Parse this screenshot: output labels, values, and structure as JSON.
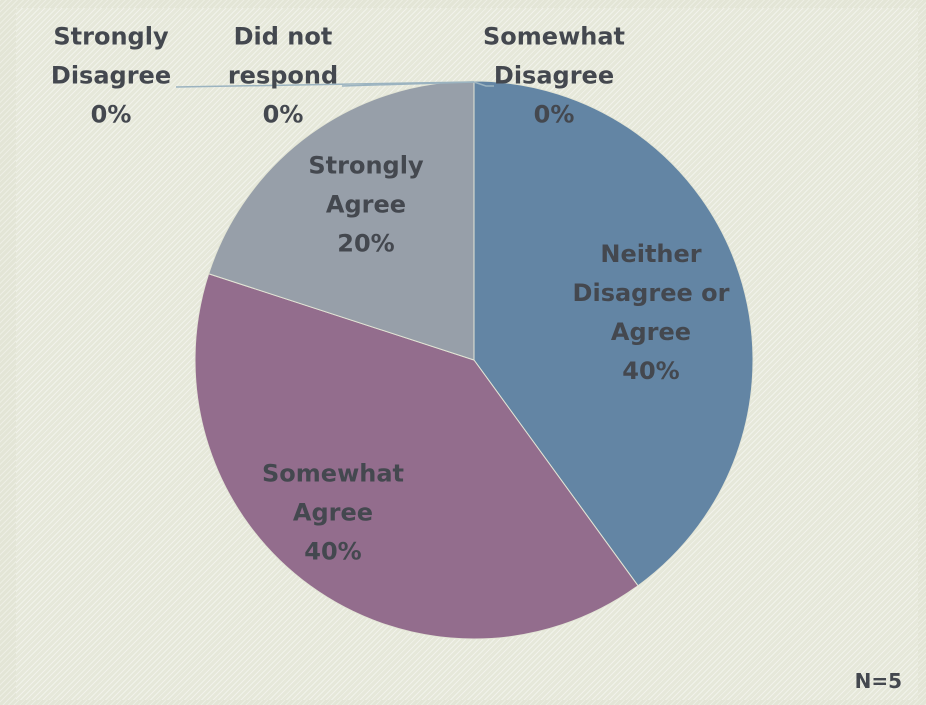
{
  "chart_data": {
    "type": "pie",
    "slices": [
      {
        "label": [
          "Neither",
          "Disagree or",
          "Agree"
        ],
        "percent_label": "40%",
        "value": 40,
        "color": "#6385a4"
      },
      {
        "label": [
          "Somewhat",
          "Agree"
        ],
        "percent_label": "40%",
        "value": 40,
        "color": "#936d8d"
      },
      {
        "label": [
          "Strongly",
          "Agree"
        ],
        "percent_label": "20%",
        "value": 20,
        "color": "#979fa9"
      },
      {
        "label": [
          "Strongly",
          "Disagree"
        ],
        "percent_label": "0%",
        "value": 0,
        "color": "#8aa3b3"
      },
      {
        "label": [
          "Did not",
          "respond"
        ],
        "percent_label": "0%",
        "value": 0,
        "color": "#9aa0a6"
      },
      {
        "label": [
          "Somewhat",
          "Disagree"
        ],
        "percent_label": "0%",
        "value": 0,
        "color": "#8fb0bf"
      }
    ],
    "sample_size_label": "N=5",
    "legend": "none"
  }
}
